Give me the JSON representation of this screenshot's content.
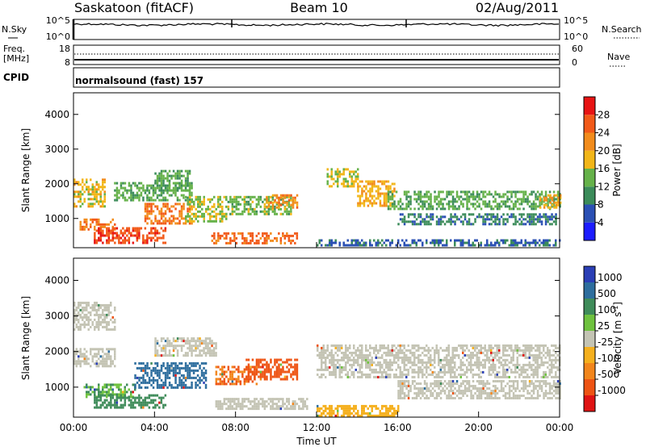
{
  "header": {
    "station": "Saskatoon (fitACF)",
    "beam": "Beam 10",
    "date": "02/Aug/2011"
  },
  "noise_panel": {
    "left_label": "N.Sky",
    "right_label": "N.Search",
    "left_ticks": [
      "10^5",
      "10^0"
    ],
    "right_ticks": [
      "10^5",
      "10^0"
    ]
  },
  "freq_panel": {
    "left_label_1": "Freq.",
    "left_label_2": "[MHz]",
    "right_label": "Nave",
    "left_ticks": [
      "18",
      "8"
    ],
    "right_ticks": [
      "60",
      "0"
    ]
  },
  "cpid_panel": {
    "label": "CPID",
    "program": "normalsound (fast) 157"
  },
  "colors": {
    "power_scale": [
      "#1c1cff",
      "#2b50b4",
      "#3c8c5a",
      "#66b24a",
      "#f2b619",
      "#f28c1c",
      "#f25a19",
      "#e81414"
    ],
    "velocity_scale": [
      "#2b3fb6",
      "#2e6e9e",
      "#3f8c5a",
      "#6fc23f",
      "#c4c4b4",
      "#f5b01e",
      "#f2861c",
      "#ee5414",
      "#e01414"
    ]
  },
  "chart_data": [
    {
      "type": "heatmap",
      "name": "power",
      "xlabel": "Time UT",
      "ylabel": "Slant Range [km]",
      "xlim": [
        0,
        24
      ],
      "ylim": [
        180,
        4600
      ],
      "xticks": [
        "00:00",
        "04:00",
        "08:00",
        "12:00",
        "16:00",
        "20:00",
        "00:00"
      ],
      "yticks": [
        1000,
        2000,
        3000,
        4000
      ],
      "colorbar": {
        "label": "Power [dB]",
        "ticks": [
          4,
          8,
          12,
          16,
          20,
          24,
          28
        ],
        "range": [
          0,
          32
        ]
      },
      "regions": [
        {
          "t": [
            0.0,
            1.5
          ],
          "r": [
            1350,
            2150
          ],
          "v": 18
        },
        {
          "t": [
            0.3,
            2.0
          ],
          "r": [
            700,
            1000
          ],
          "v": 23
        },
        {
          "t": [
            1.0,
            4.5
          ],
          "r": [
            330,
            750
          ],
          "v": 27
        },
        {
          "t": [
            2.0,
            5.8
          ],
          "r": [
            1500,
            2050
          ],
          "v": 13
        },
        {
          "t": [
            3.5,
            5.8
          ],
          "r": [
            850,
            1450
          ],
          "v": 24
        },
        {
          "t": [
            4.0,
            5.8
          ],
          "r": [
            1800,
            2400
          ],
          "v": 12
        },
        {
          "t": [
            5.5,
            7.5
          ],
          "r": [
            900,
            1650
          ],
          "v": 15
        },
        {
          "t": [
            6.8,
            11.0
          ],
          "r": [
            300,
            600
          ],
          "v": 25
        },
        {
          "t": [
            7.5,
            10.8
          ],
          "r": [
            1150,
            1650
          ],
          "v": 14
        },
        {
          "t": [
            9.5,
            11.0
          ],
          "r": [
            1350,
            1700
          ],
          "v": 22
        },
        {
          "t": [
            12.5,
            14.0
          ],
          "r": [
            1900,
            2450
          ],
          "v": 16
        },
        {
          "t": [
            14.0,
            15.8
          ],
          "r": [
            1400,
            2100
          ],
          "v": 19
        },
        {
          "t": [
            15.5,
            24.0
          ],
          "r": [
            1300,
            1800
          ],
          "v": 13
        },
        {
          "t": [
            16.0,
            23.8
          ],
          "r": [
            850,
            1150
          ],
          "v": 9
        },
        {
          "t": [
            12.0,
            24.0
          ],
          "r": [
            200,
            400
          ],
          "v": 7
        },
        {
          "t": [
            23.0,
            24.0
          ],
          "r": [
            1300,
            1700
          ],
          "v": 20
        }
      ]
    },
    {
      "type": "heatmap",
      "name": "velocity",
      "xlabel": "Time UT",
      "ylabel": "Slant Range [km]",
      "xlim": [
        0,
        24
      ],
      "ylim": [
        180,
        4600
      ],
      "xticks": [
        "00:00",
        "04:00",
        "08:00",
        "12:00",
        "16:00",
        "20:00",
        "00:00"
      ],
      "yticks": [
        1000,
        2000,
        3000,
        4000
      ],
      "colorbar": {
        "label": "Velocity [m s^-1]",
        "ticks": [
          "1000",
          "500",
          "100",
          "25",
          "-25",
          "-100",
          "-500",
          "-1000"
        ]
      },
      "regions": [
        {
          "t": [
            0.0,
            2.0
          ],
          "r": [
            1600,
            2100
          ],
          "v": 0
        },
        {
          "t": [
            0.5,
            3.0
          ],
          "r": [
            700,
            1100
          ],
          "v": 150
        },
        {
          "t": [
            1.0,
            4.5
          ],
          "r": [
            400,
            800
          ],
          "v": 250
        },
        {
          "t": [
            3.0,
            6.5
          ],
          "r": [
            1000,
            1700
          ],
          "v": 400
        },
        {
          "t": [
            4.0,
            7.0
          ],
          "r": [
            1900,
            2400
          ],
          "v": 0
        },
        {
          "t": [
            7.0,
            9.0
          ],
          "r": [
            1100,
            1600
          ],
          "v": -300
        },
        {
          "t": [
            8.5,
            11.0
          ],
          "r": [
            1200,
            1800
          ],
          "v": -400
        },
        {
          "t": [
            7.0,
            11.5
          ],
          "r": [
            400,
            700
          ],
          "v": 0
        },
        {
          "t": [
            12.0,
            24.0
          ],
          "r": [
            1300,
            2200
          ],
          "v": 0
        },
        {
          "t": [
            12.0,
            16.0
          ],
          "r": [
            200,
            500
          ],
          "v": -80
        },
        {
          "t": [
            16.0,
            24.0
          ],
          "r": [
            700,
            1200
          ],
          "v": 0
        },
        {
          "t": [
            0.0,
            2.0
          ],
          "r": [
            2600,
            3400
          ],
          "v": 0
        }
      ]
    }
  ]
}
